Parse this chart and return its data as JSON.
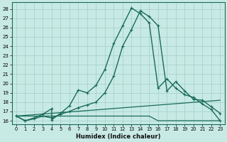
{
  "title": "",
  "xlabel": "Humidex (Indice chaleur)",
  "ylabel": "",
  "bg_color": "#c8eae4",
  "line_color": "#1a6b5a",
  "grid_color": "#a0cec8",
  "x_ticks": [
    0,
    1,
    2,
    3,
    4,
    5,
    6,
    7,
    8,
    9,
    10,
    11,
    12,
    13,
    14,
    15,
    16,
    17,
    18,
    19,
    20,
    21,
    22,
    23
  ],
  "y_ticks": [
    16,
    17,
    18,
    19,
    20,
    21,
    22,
    23,
    24,
    25,
    26,
    27,
    28
  ],
  "xlim": [
    -0.5,
    23.5
  ],
  "ylim": [
    15.6,
    28.7
  ],
  "series": [
    {
      "x": [
        0,
        1,
        2,
        3,
        4,
        4,
        5,
        6,
        7,
        8,
        9,
        10,
        11,
        12,
        13,
        14,
        15,
        16,
        17,
        18,
        19,
        20,
        21,
        22,
        23
      ],
      "y": [
        16.5,
        16.0,
        16.3,
        16.7,
        17.3,
        16.1,
        16.8,
        17.6,
        19.3,
        19.0,
        19.8,
        21.5,
        24.3,
        26.2,
        28.1,
        27.5,
        26.5,
        19.5,
        20.5,
        19.5,
        18.8,
        18.5,
        17.8,
        17.2,
        16.0
      ],
      "marker": "+",
      "linewidth": 1.0,
      "markersize": 3.5
    },
    {
      "x": [
        0,
        1,
        2,
        3,
        4,
        5,
        6,
        7,
        8,
        9,
        10,
        11,
        12,
        13,
        14,
        15,
        16,
        17,
        18,
        19,
        20,
        21,
        22,
        23
      ],
      "y": [
        16.5,
        16.0,
        16.2,
        16.5,
        16.3,
        16.7,
        17.0,
        17.4,
        17.7,
        18.0,
        19.0,
        20.8,
        24.0,
        25.8,
        27.8,
        27.2,
        26.2,
        19.2,
        20.2,
        19.2,
        18.3,
        18.2,
        17.5,
        16.8
      ],
      "marker": "+",
      "linewidth": 1.0,
      "markersize": 3.5
    },
    {
      "x": [
        0,
        23
      ],
      "y": [
        16.5,
        18.2
      ],
      "marker": null,
      "linewidth": 0.9,
      "markersize": 0
    },
    {
      "x": [
        0,
        15,
        16,
        23
      ],
      "y": [
        16.5,
        16.5,
        16.0,
        16.0
      ],
      "marker": null,
      "linewidth": 0.9,
      "markersize": 0
    }
  ]
}
